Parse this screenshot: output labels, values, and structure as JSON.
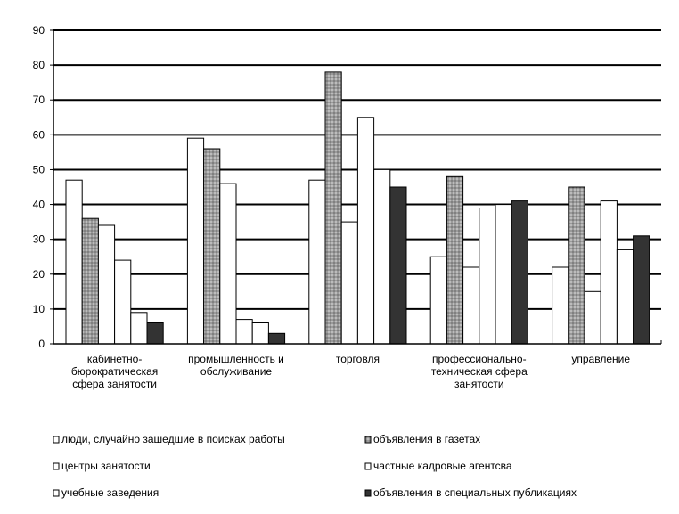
{
  "chart_data": {
    "type": "bar",
    "title": "",
    "xlabel": "",
    "ylabel": "",
    "ylim": [
      0,
      90
    ],
    "yticks": [
      0,
      10,
      20,
      30,
      40,
      50,
      60,
      70,
      80,
      90
    ],
    "grid": true,
    "legend_position": "bottom",
    "categories": [
      [
        "кабинетно-",
        "бюрократическая",
        "сфера занятости"
      ],
      [
        "промышленность и",
        "обслуживание"
      ],
      [
        "торговля"
      ],
      [
        "профессионально-",
        "техническая сфера",
        "занятости"
      ],
      [
        "управление"
      ]
    ],
    "series": [
      {
        "name": "люди, случайно зашедшие в поисках работы",
        "pattern": "white",
        "values": [
          47,
          59,
          47,
          25,
          22
        ]
      },
      {
        "name": "объявления в газетах",
        "pattern": "dotted",
        "values": [
          36,
          56,
          78,
          48,
          45
        ]
      },
      {
        "name": "центры занятости",
        "pattern": "white",
        "values": [
          34,
          46,
          35,
          22,
          15
        ]
      },
      {
        "name": "частные кадровые агентсва",
        "pattern": "white",
        "values": [
          24,
          7,
          65,
          39,
          41
        ]
      },
      {
        "name": "учебные заведения",
        "pattern": "white",
        "values": [
          9,
          6,
          50,
          40,
          27
        ]
      },
      {
        "name": "объявления в специальных публикациях",
        "pattern": "dark",
        "values": [
          6,
          3,
          45,
          41,
          31
        ]
      }
    ],
    "legend_layout": [
      [
        0,
        1
      ],
      [
        2,
        3
      ],
      [
        4,
        5
      ]
    ],
    "colors": {
      "white": "#ffffff",
      "dotted_base": "#9a9a9a",
      "dotted_dot": "#cfcfcf",
      "dark": "#333333",
      "stroke": "#000000"
    }
  }
}
